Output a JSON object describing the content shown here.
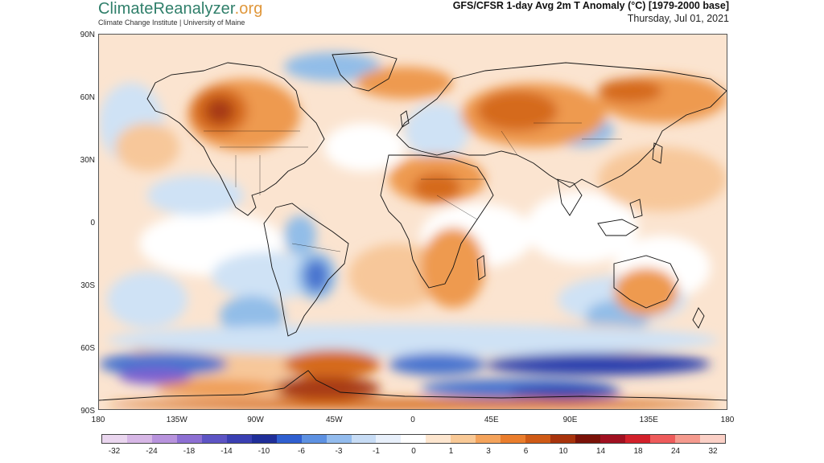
{
  "brand": {
    "name_main": "ClimateReanalyzer",
    "name_ext": ".org",
    "subtitle": "Climate Change Institute | University of Maine"
  },
  "header": {
    "title": "GFS/CFSR 1-day Avg 2m T Anomaly (°C) [1979-2000 base]",
    "date": "Thursday, Jul 01, 2021"
  },
  "map": {
    "lat_labels": [
      "90N",
      "60N",
      "30N",
      "0",
      "30S",
      "60S",
      "90S"
    ],
    "lon_labels": [
      "180",
      "135W",
      "90W",
      "45W",
      "0",
      "45E",
      "90E",
      "135E",
      "180"
    ],
    "colors": {
      "ocean_base": "#fbe4d0",
      "neutral": "#ffffff",
      "warm_light": "#f7c79a",
      "warm_mid": "#ee9a4f",
      "warm_strong": "#d56a1f",
      "hot": "#a73a12",
      "very_hot": "#7a1410",
      "cool_light": "#cfe2f5",
      "cool_mid": "#92bde8",
      "cold": "#4a74cf",
      "very_cold": "#2b3fae",
      "extreme_cold": "#7b5fd0",
      "coast": "#111111"
    }
  },
  "colorbar": {
    "colors": [
      "#ead6ef",
      "#d7b7e6",
      "#b893dd",
      "#8d6fd3",
      "#5d54c4",
      "#3a3fb2",
      "#1f2e99",
      "#2f5fd0",
      "#5d91e2",
      "#93bcee",
      "#c7dcf5",
      "#e8f0fb",
      "#ffffff",
      "#fde6cf",
      "#f9c996",
      "#f4a35b",
      "#ea7d2c",
      "#cf5a15",
      "#a8330c",
      "#7a1208",
      "#a01020",
      "#d2202a",
      "#ee5b5b",
      "#f59a8e",
      "#fbd0c6"
    ],
    "ticks": [
      "-32",
      "-24",
      "-18",
      "-14",
      "-10",
      "-6",
      "-3",
      "-1",
      "0",
      "1",
      "3",
      "6",
      "10",
      "14",
      "18",
      "24",
      "32"
    ]
  }
}
